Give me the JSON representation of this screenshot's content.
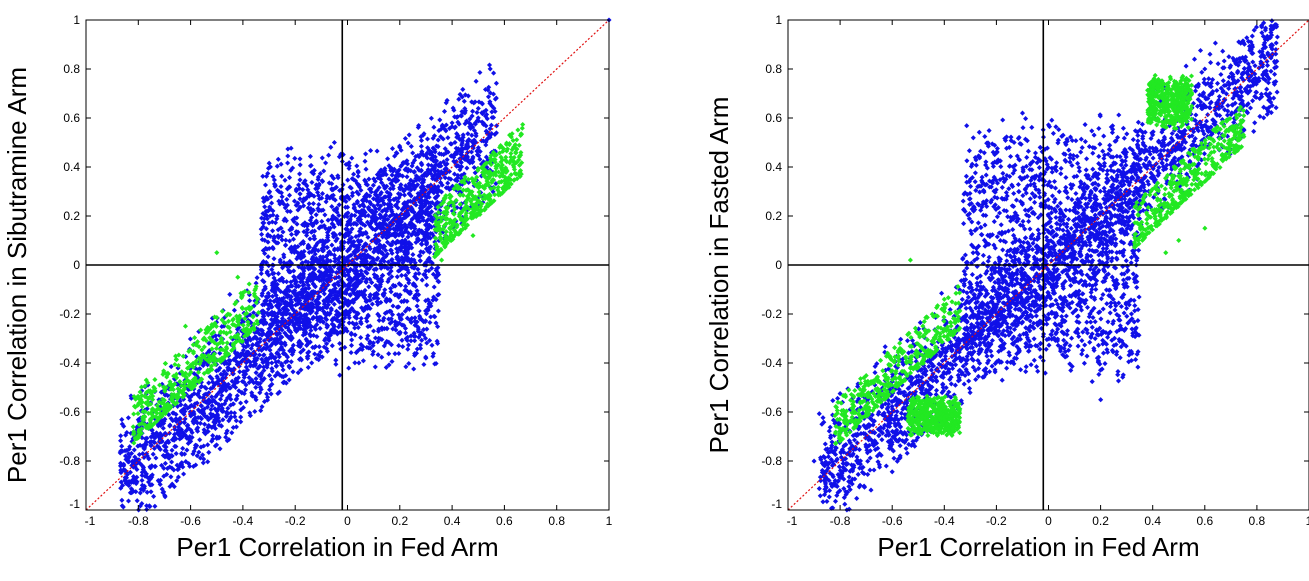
{
  "chart_data": [
    {
      "type": "scatter",
      "title": "",
      "xlabel": "Per1 Correlation in Fed Arm",
      "ylabel": "Per1 Correlation in Sibutramine Arm",
      "xlim": [
        -1,
        1
      ],
      "ylim": [
        -1,
        1
      ],
      "xticks": [
        "-1",
        "-0.8",
        "-0.6",
        "-0.4",
        "-0.2",
        "0",
        "0.2",
        "0.4",
        "0.6",
        "0.8",
        "1"
      ],
      "yticks": [
        "-1",
        "-0.8",
        "-0.6",
        "-0.4",
        "-0.2",
        "0",
        "0.2",
        "0.4",
        "0.6",
        "0.8",
        "1"
      ],
      "grid": false,
      "colors": {
        "blue": "#1010e8",
        "green": "#22e822",
        "diagonal": "#e01010",
        "reference_lines": "#000000"
      },
      "reference_lines": {
        "vertical_x": -0.02,
        "horizontal_y": 0,
        "diagonal": "y = x"
      },
      "series": [
        {
          "color": "blue",
          "regions": [
            {
              "x_range": [
                -0.87,
                0.57
              ],
              "center_offset": [
                -0.27,
                0.3
              ],
              "spread": 0.24
            },
            {
              "x_range": [
                -0.33,
                0.35
              ],
              "y_range": [
                -0.45,
                0.5
              ]
            }
          ],
          "points": [
            [
              -0.86,
              -0.76
            ],
            [
              -0.7,
              -0.5
            ],
            [
              -0.6,
              -0.72
            ],
            [
              -0.45,
              -0.12
            ],
            [
              -0.35,
              -0.55
            ],
            [
              -0.05,
              0.5
            ],
            [
              -0.03,
              -0.45
            ],
            [
              0.2,
              0.48
            ],
            [
              0.3,
              -0.38
            ],
            [
              0.4,
              0.58
            ],
            [
              0.5,
              0.6
            ],
            [
              0.56,
              0.64
            ],
            [
              1.0,
              1.0
            ]
          ]
        },
        {
          "color": "green",
          "regions": [
            {
              "x_range": [
                -0.82,
                -0.34
              ],
              "y_minus_x": [
                0.09,
                0.3
              ]
            },
            {
              "x_range": [
                0.33,
                0.67
              ],
              "y_minus_x": [
                -0.3,
                -0.09
              ]
            }
          ],
          "points": [
            [
              -0.5,
              0.05
            ],
            [
              -0.42,
              -0.05
            ],
            [
              -0.62,
              -0.25
            ],
            [
              0.36,
              0.02
            ],
            [
              0.48,
              0.12
            ],
            [
              0.62,
              0.53
            ]
          ]
        }
      ]
    },
    {
      "type": "scatter",
      "title": "",
      "xlabel": "Per1 Correlation in Fed Arm",
      "ylabel": "Per1 Correlation in Fasted Arm",
      "xlim": [
        -1,
        1
      ],
      "ylim": [
        -1,
        1
      ],
      "xticks": [
        "-1",
        "-0.8",
        "-0.6",
        "-0.4",
        "-0.2",
        "0",
        "0.2",
        "0.4",
        "0.6",
        "0.8",
        "1"
      ],
      "yticks": [
        "-1",
        "-0.8",
        "-0.6",
        "-0.4",
        "-0.2",
        "0",
        "0.2",
        "0.4",
        "0.6",
        "0.8",
        "1"
      ],
      "grid": false,
      "colors": {
        "blue": "#1010e8",
        "green": "#22e822",
        "diagonal": "#e01010",
        "reference_lines": "#000000"
      },
      "reference_lines": {
        "vertical_x": -0.02,
        "horizontal_y": 0,
        "diagonal": "y = x"
      },
      "series": [
        {
          "color": "blue",
          "regions": [
            {
              "x_range": [
                -0.88,
                0.88
              ],
              "center_offset": [
                -0.25,
                0.3
              ],
              "spread": 0.2
            },
            {
              "x_range": [
                -0.33,
                0.35
              ],
              "y_range": [
                -0.5,
                0.62
              ]
            }
          ],
          "points": [
            [
              -0.9,
              -0.8
            ],
            [
              -0.8,
              -0.68
            ],
            [
              -0.52,
              -0.72
            ],
            [
              -0.3,
              0.35
            ],
            [
              -0.1,
              0.62
            ],
            [
              0.2,
              -0.55
            ],
            [
              0.45,
              0.72
            ],
            [
              0.6,
              0.8
            ],
            [
              0.75,
              0.55
            ],
            [
              0.85,
              0.7
            ]
          ]
        },
        {
          "color": "green",
          "regions": [
            {
              "x_range": [
                -0.82,
                -0.34
              ],
              "y_minus_x": [
                0.08,
                0.26
              ]
            },
            {
              "x_range": [
                0.33,
                0.75
              ],
              "y_minus_x": [
                -0.26,
                -0.08
              ]
            },
            {
              "x_range": [
                -0.54,
                -0.34
              ],
              "y_range": [
                -0.7,
                -0.53
              ]
            },
            {
              "x_range": [
                0.38,
                0.55
              ],
              "y_range": [
                0.55,
                0.78
              ]
            }
          ],
          "points": [
            [
              -0.53,
              0.02
            ],
            [
              -0.4,
              -0.14
            ],
            [
              0.45,
              0.05
            ],
            [
              0.5,
              0.1
            ],
            [
              0.6,
              0.15
            ]
          ]
        }
      ]
    }
  ]
}
